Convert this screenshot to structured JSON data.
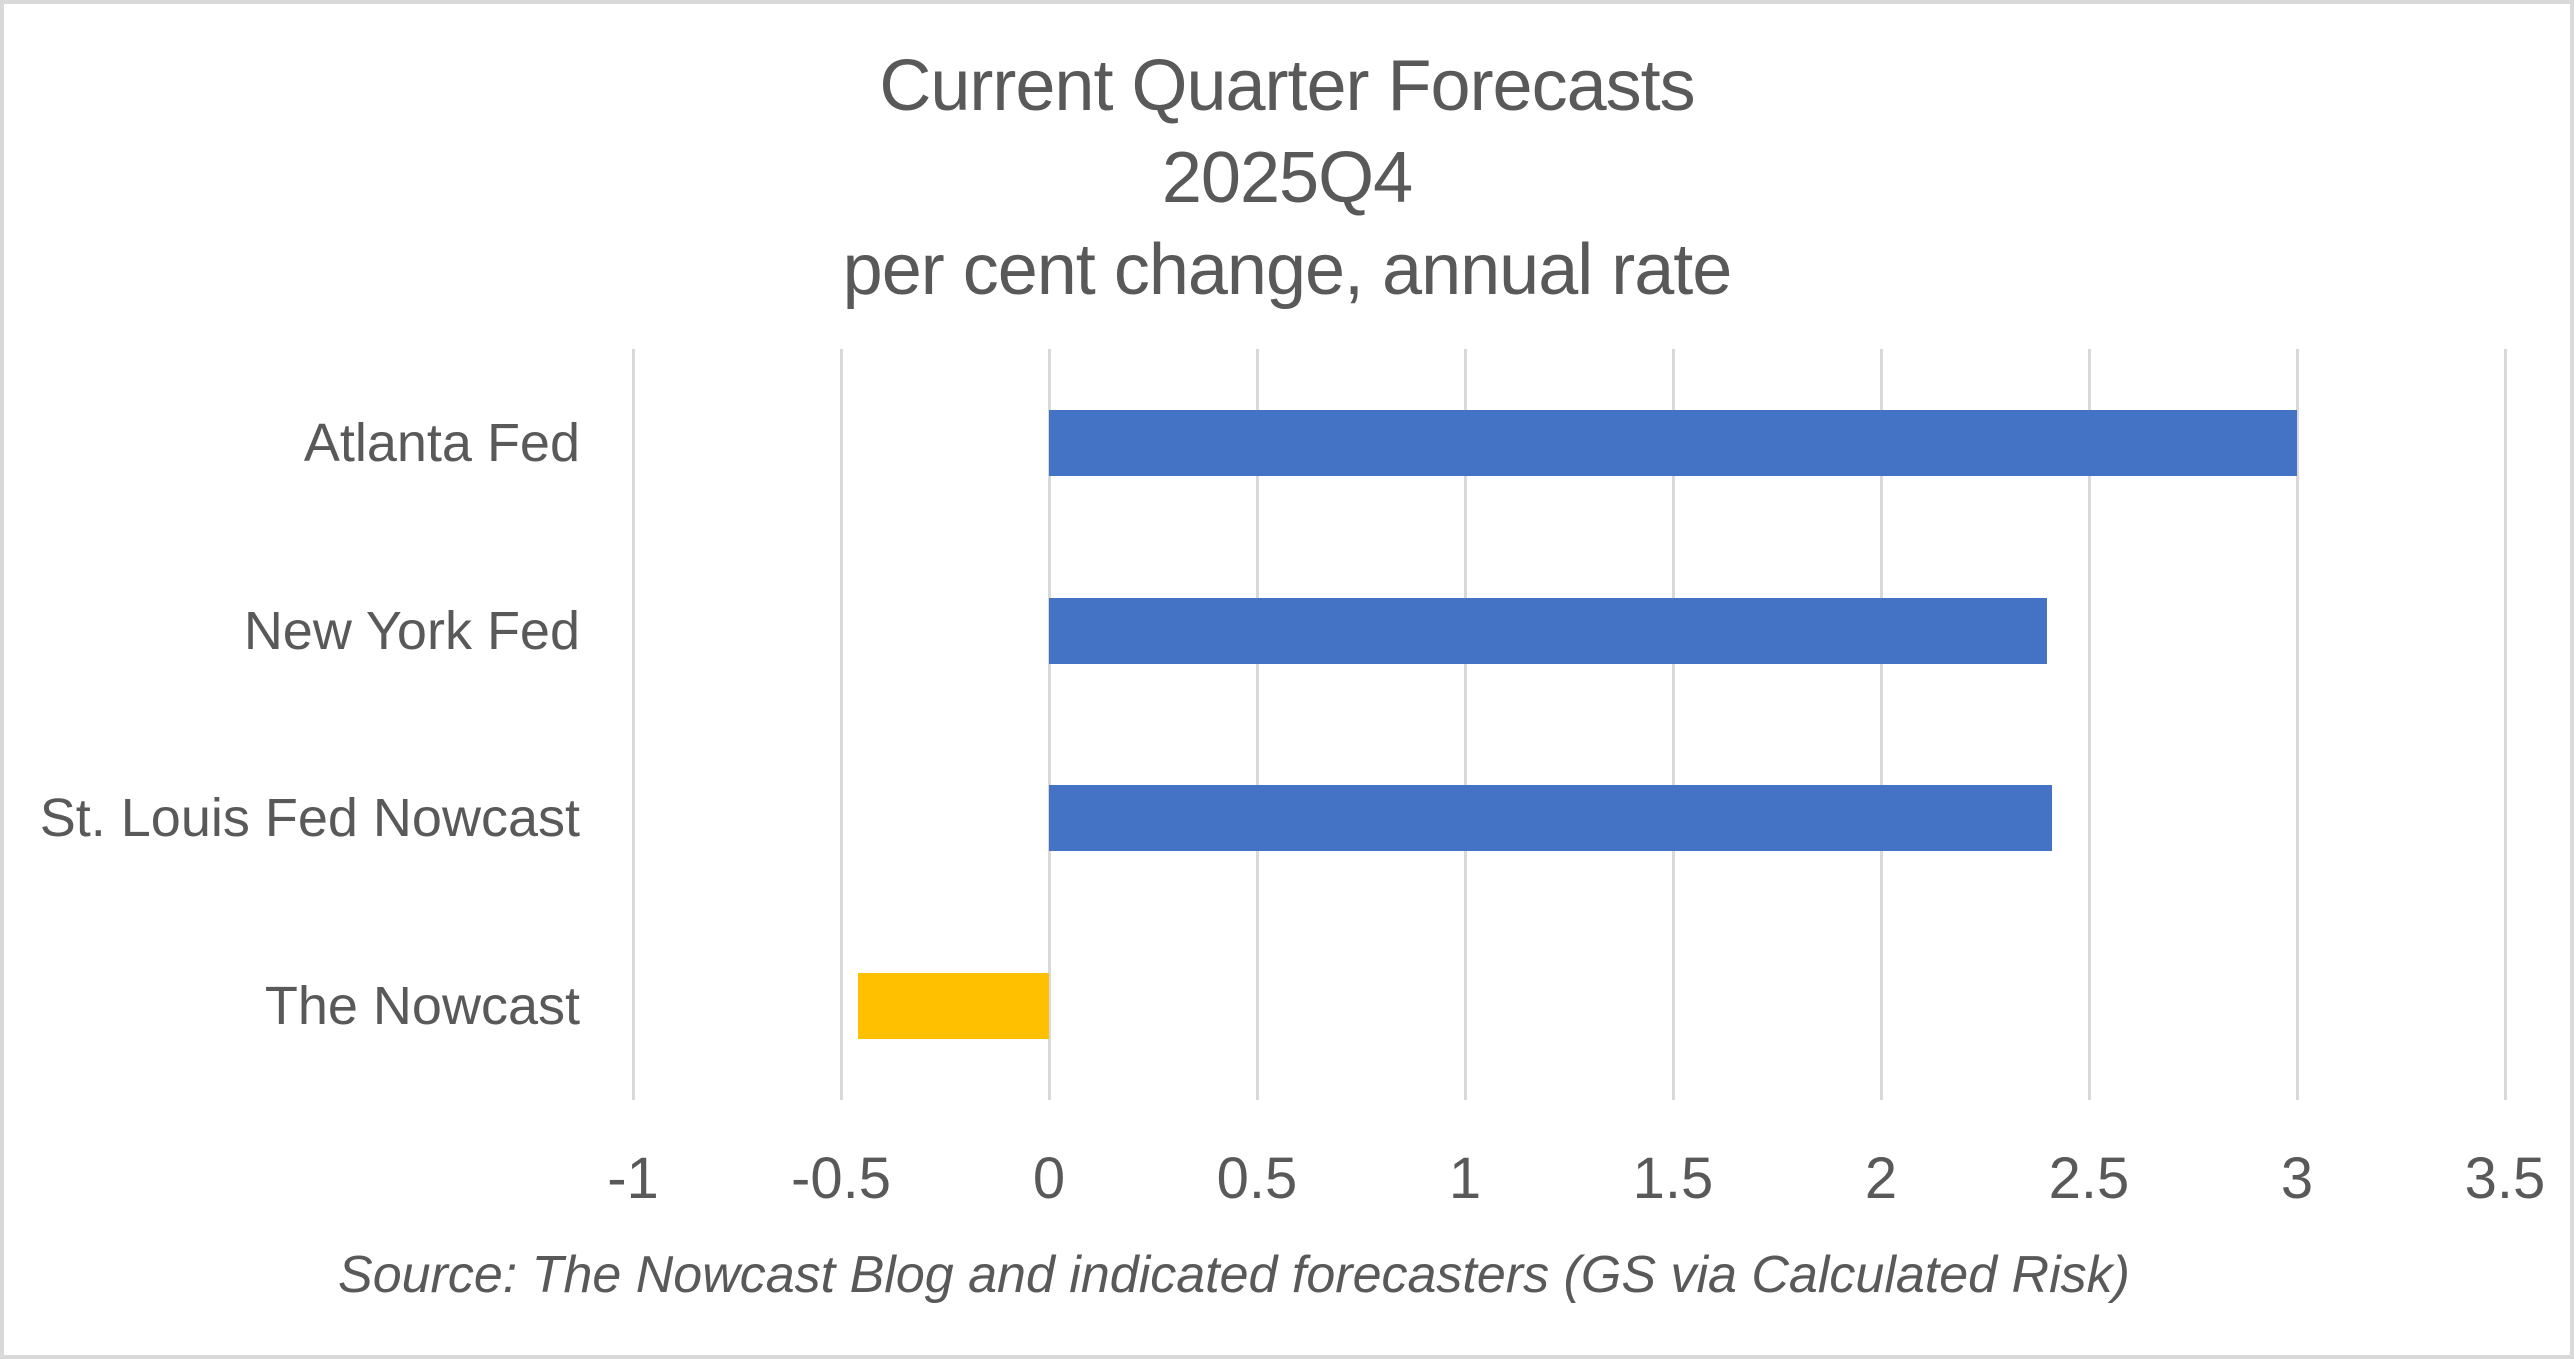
{
  "window": {
    "background": "#ffffff",
    "border_color": "#d9d9d9",
    "text_color": "#595959"
  },
  "chart_data": {
    "type": "bar",
    "orientation": "horizontal",
    "title_lines": [
      "Current Quarter Forecasts",
      "2025Q4",
      "per cent change, annual rate"
    ],
    "categories": [
      "Atlanta Fed",
      "New York Fed",
      "St. Louis Fed Nowcast",
      "The Nowcast"
    ],
    "values": [
      3.0,
      2.4,
      2.41,
      -0.46
    ],
    "bar_colors": [
      "#4472C4",
      "#4472C4",
      "#4472C4",
      "#FFC000"
    ],
    "xlim": [
      -1,
      3.5
    ],
    "xticks": [
      -1,
      -0.5,
      0,
      0.5,
      1,
      1.5,
      2,
      2.5,
      3,
      3.5
    ],
    "xtick_labels": [
      "-1",
      "-0.5",
      "0",
      "0.5",
      "1",
      "1.5",
      "2",
      "2.5",
      "3",
      "3.5"
    ],
    "grid": "vertical",
    "gridline_color": "#d9d9d9",
    "legend": "none",
    "source_note": "Source: The Nowcast Blog and indicated forecasters (GS via Calculated Risk)"
  }
}
